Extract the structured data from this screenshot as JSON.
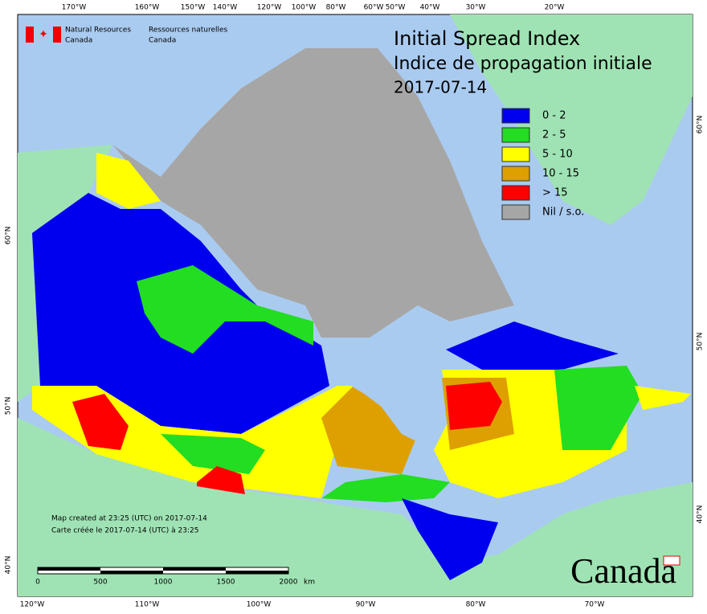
{
  "header": {
    "agency_en": [
      "Natural Resources",
      "Canada"
    ],
    "agency_fr": [
      "Ressources naturelles",
      "Canada"
    ]
  },
  "title": {
    "en": "Initial Spread Index",
    "fr": "Indice de propagation initiale",
    "date": "2017-07-14"
  },
  "legend": [
    {
      "label": "0 - 2",
      "color": "#0000ee"
    },
    {
      "label": "2 - 5",
      "color": "#22dd22"
    },
    {
      "label": "5 - 10",
      "color": "#ffff00"
    },
    {
      "label": "10 - 15",
      "color": "#dda000"
    },
    {
      "label": "> 15",
      "color": "#ff0000"
    },
    {
      "label": "Nil / s.o.",
      "color": "#a6a6a6"
    }
  ],
  "graticule": {
    "top": [
      "170°W",
      "160°W",
      "150°W",
      "140°W",
      "120°W",
      "100°W",
      "80°W",
      "60°W",
      "50°W",
      "40°W",
      "30°W",
      "20°W"
    ],
    "bottom": [
      "120°W",
      "110°W",
      "100°W",
      "90°W",
      "80°W",
      "70°W"
    ],
    "left": [
      "60°N",
      "50°N",
      "40°N"
    ],
    "right": [
      "60°N",
      "50°N",
      "40°N"
    ]
  },
  "notes": [
    "Map created at 23:25 (UTC) on 2017-07-14",
    "Carte créée le 2017-07-14 (UTC) à 23:25"
  ],
  "scale": {
    "labels": [
      "0",
      "500",
      "1000",
      "1500",
      "2000"
    ],
    "unit": "km"
  },
  "wordmark": "Canada"
}
